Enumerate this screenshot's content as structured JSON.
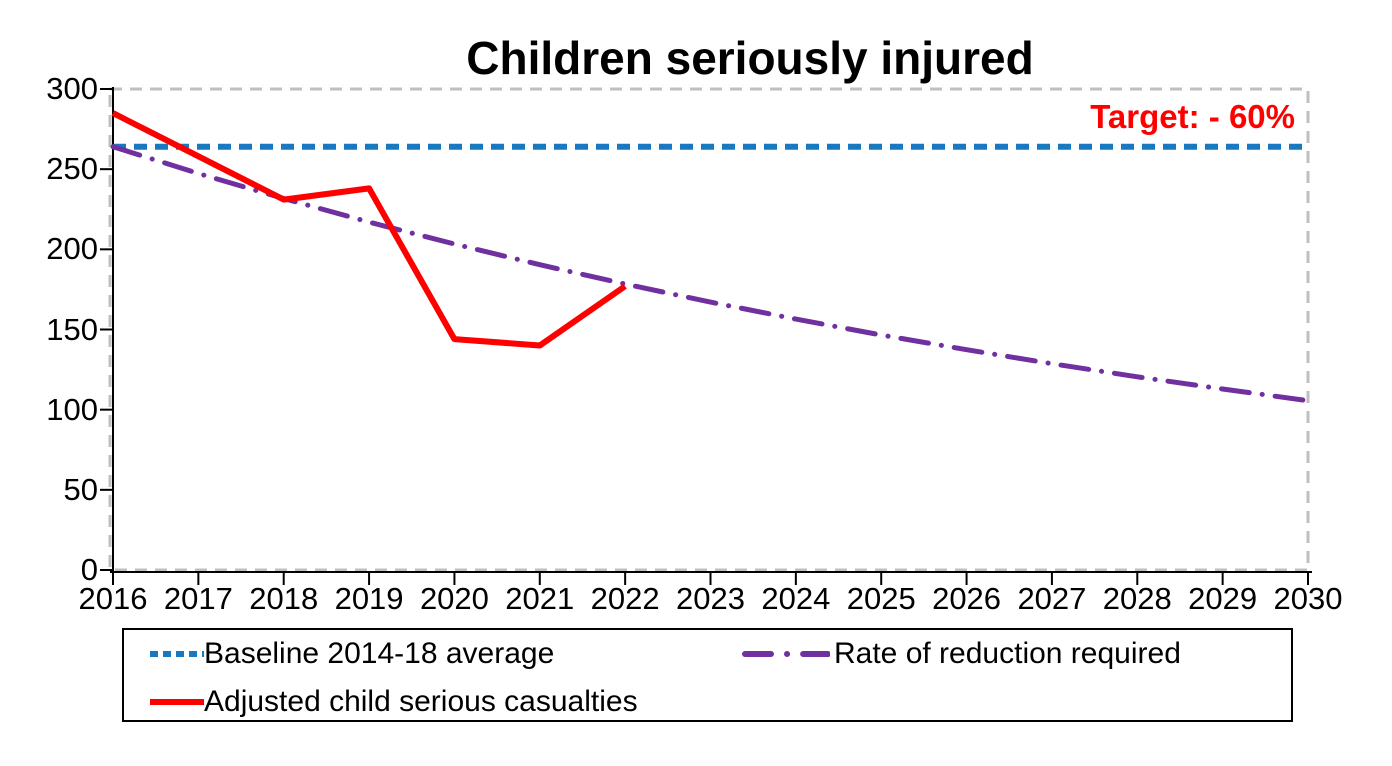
{
  "title": "Children seriously injured",
  "annotation": {
    "text": "Target: - 60%",
    "color": "#FF0000"
  },
  "colors": {
    "plot_border": "#BFBFBF",
    "axis": "#000000",
    "baseline": "#1879C0",
    "required": "#7030A0",
    "adjusted": "#FF0000"
  },
  "chart_data": {
    "type": "line",
    "title": "Children seriously injured",
    "annotation": "Target: - 60%",
    "x": [
      2016,
      2017,
      2018,
      2019,
      2020,
      2021,
      2022,
      2023,
      2024,
      2025,
      2026,
      2027,
      2028,
      2029,
      2030
    ],
    "ylim": [
      0,
      300
    ],
    "yticks": [
      0,
      50,
      100,
      150,
      200,
      250,
      300
    ],
    "grid": "off",
    "legend_position": "bottom",
    "series": [
      {
        "name": "Baseline 2014-18 average",
        "color": "#1879C0",
        "style": "dashed",
        "width": 6,
        "values": [
          264,
          264,
          264,
          264,
          264,
          264,
          264,
          264,
          264,
          264,
          264,
          264,
          264,
          264,
          264
        ]
      },
      {
        "name": "Rate of reduction required",
        "color": "#7030A0",
        "style": "dashdot",
        "width": 5,
        "values": [
          264,
          247.3,
          231.7,
          217.0,
          203.3,
          190.4,
          178.4,
          167.1,
          156.5,
          146.6,
          137.4,
          128.7,
          120.5,
          112.9,
          105.6
        ]
      },
      {
        "name": "Adjusted child serious casualties",
        "color": "#FF0000",
        "style": "solid",
        "width": 6,
        "values": [
          285,
          258,
          231,
          238,
          144,
          140,
          177,
          null,
          null,
          null,
          null,
          null,
          null,
          null,
          null
        ]
      }
    ]
  }
}
